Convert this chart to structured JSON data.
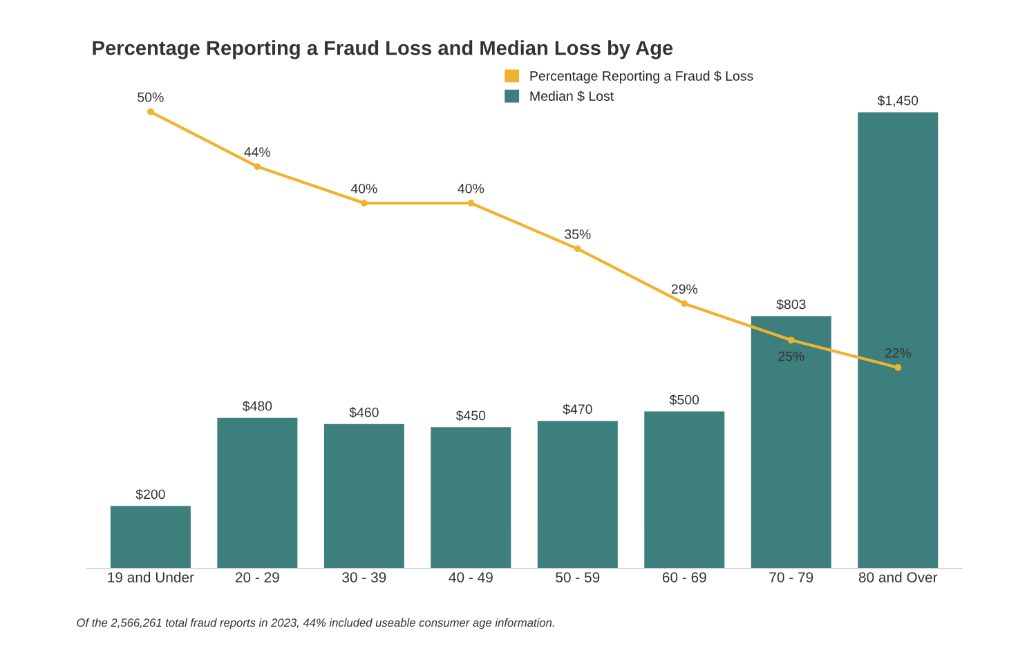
{
  "chart_data": {
    "type": "bar",
    "title": "Percentage Reporting a Fraud Loss and Median Loss by Age",
    "categories": [
      "19 and Under",
      "20 - 29",
      "30 - 39",
      "40 - 49",
      "50 - 59",
      "60 - 69",
      "70 - 79",
      "80 and Over"
    ],
    "series": [
      {
        "name": "Percentage Reporting a Fraud $ Loss",
        "type": "line",
        "axis": "y2",
        "color": "#f0b330",
        "values": [
          50,
          44,
          40,
          40,
          35,
          29,
          25,
          22
        ],
        "value_labels": [
          "50%",
          "44%",
          "40%",
          "40%",
          "35%",
          "29%",
          "25%",
          "22%"
        ]
      },
      {
        "name": "Median $ Lost",
        "color": "#3d7f7d",
        "values": [
          200,
          480,
          460,
          450,
          470,
          500,
          803,
          1450
        ],
        "value_labels": [
          "$200",
          "$480",
          "$460",
          "$450",
          "$470",
          "$500",
          "$803",
          "$1,450"
        ]
      }
    ],
    "tick_labels": "x",
    "marker": "circle",
    "legend": "top",
    "grid": false,
    "annotations": [
      "Of the 2,566,261 total fraud reports in 2023, 44% included useable consumer age information."
    ]
  }
}
